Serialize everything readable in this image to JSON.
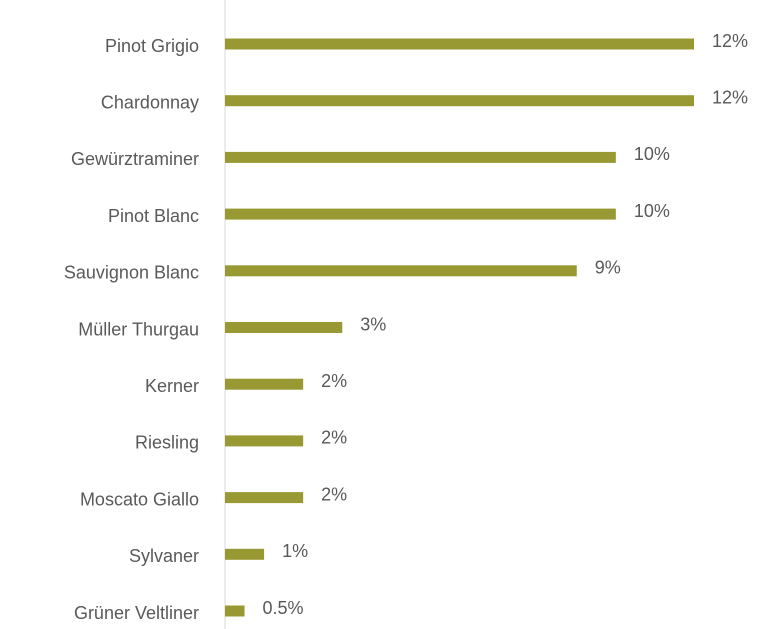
{
  "chart_data": {
    "type": "bar",
    "orientation": "horizontal",
    "categories": [
      "Pinot Grigio",
      "Chardonnay",
      "Gewürztraminer",
      "Pinot Blanc",
      "Sauvignon Blanc",
      "Müller Thurgau",
      "Kerner",
      "Riesling",
      "Moscato Giallo",
      "Sylvaner",
      "Grüner Veltliner"
    ],
    "values": [
      12,
      12,
      10,
      10,
      9,
      3,
      2,
      2,
      2,
      1,
      0.5
    ],
    "value_labels": [
      "12%",
      "12%",
      "10%",
      "10%",
      "9%",
      "3%",
      "2%",
      "2%",
      "2%",
      "1%",
      "0.5%"
    ],
    "color": "#999933"
  }
}
